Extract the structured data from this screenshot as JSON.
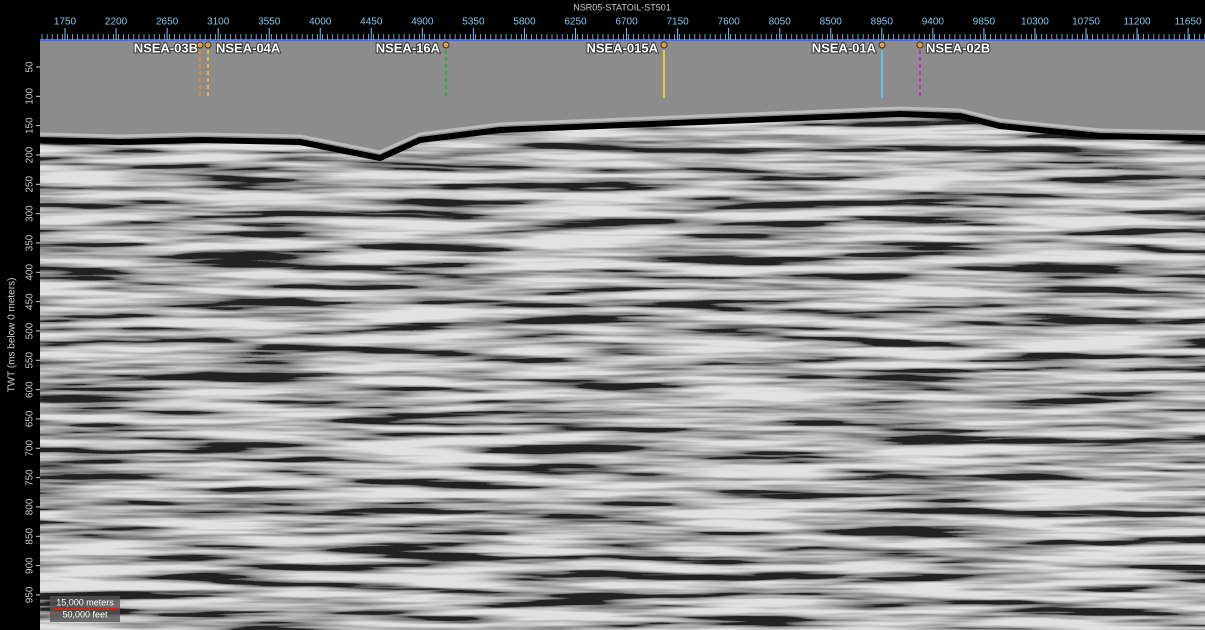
{
  "header": {
    "title": "NSR05-STATOIL-ST501"
  },
  "top_axis": {
    "ticks": [
      "1750",
      "2200",
      "2650",
      "3100",
      "3550",
      "4000",
      "4450",
      "4900",
      "5350",
      "5800",
      "6250",
      "6700",
      "7150",
      "7600",
      "8050",
      "8500",
      "8950",
      "9400",
      "9850",
      "10300",
      "10750",
      "11200",
      "11650"
    ]
  },
  "left_axis": {
    "label": "TWT (ms below 0 meters)",
    "ticks": [
      "50",
      "100",
      "150",
      "200",
      "250",
      "300",
      "350",
      "400",
      "450",
      "500",
      "550",
      "600",
      "650",
      "700",
      "750",
      "800",
      "850",
      "900",
      "950"
    ]
  },
  "wells": [
    {
      "label": "NSEA-03B"
    },
    {
      "label": "NSEA-04A"
    },
    {
      "label": "NSEA-16A"
    },
    {
      "label": "NSEA-015A"
    },
    {
      "label": "NSEA-01A"
    },
    {
      "label": "NSEA-02B"
    }
  ],
  "scale_bar": {
    "metric": "15,000 meters",
    "imperial": "50,000 feet"
  }
}
